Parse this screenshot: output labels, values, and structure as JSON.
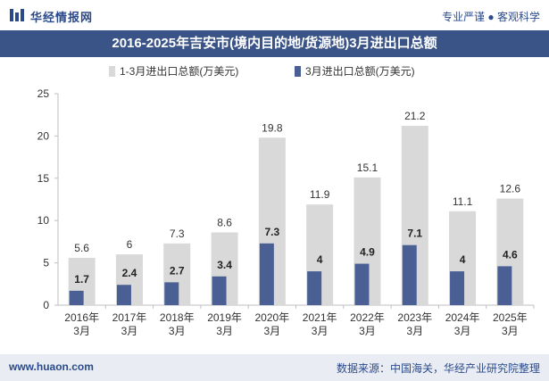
{
  "header": {
    "brand": "华经情报网",
    "slogan": "专业严谨 ● 客观科学"
  },
  "footer": {
    "site": "www.huaon.com",
    "source": "数据来源：中国海关，华经产业研究院整理"
  },
  "chart_data": {
    "type": "bar",
    "title": "2016-2025年吉安市(境内目的地/货源地)3月进出口总额",
    "categories": [
      "2016年\n3月",
      "2017年\n3月",
      "2018年\n3月",
      "2019年\n3月",
      "2020年\n3月",
      "2021年\n3月",
      "2022年\n3月",
      "2023年\n3月",
      "2024年\n3月",
      "2025年\n3月"
    ],
    "series": [
      {
        "name": "1-3月进出口总额(万美元)",
        "values": [
          5.6,
          6,
          7.3,
          8.6,
          19.8,
          11.9,
          15.1,
          21.2,
          11.1,
          12.6
        ],
        "color": "#d9d9d9"
      },
      {
        "name": "3月进出口总额(万美元)",
        "values": [
          1.7,
          2.4,
          2.7,
          3.4,
          7.3,
          4,
          4.9,
          7.1,
          4,
          4.6
        ],
        "color": "#4a5f94"
      }
    ],
    "ylim": [
      0,
      25
    ],
    "yticks": [
      0,
      5,
      10,
      15,
      20,
      25
    ],
    "legend_position": "top",
    "grid": false
  }
}
